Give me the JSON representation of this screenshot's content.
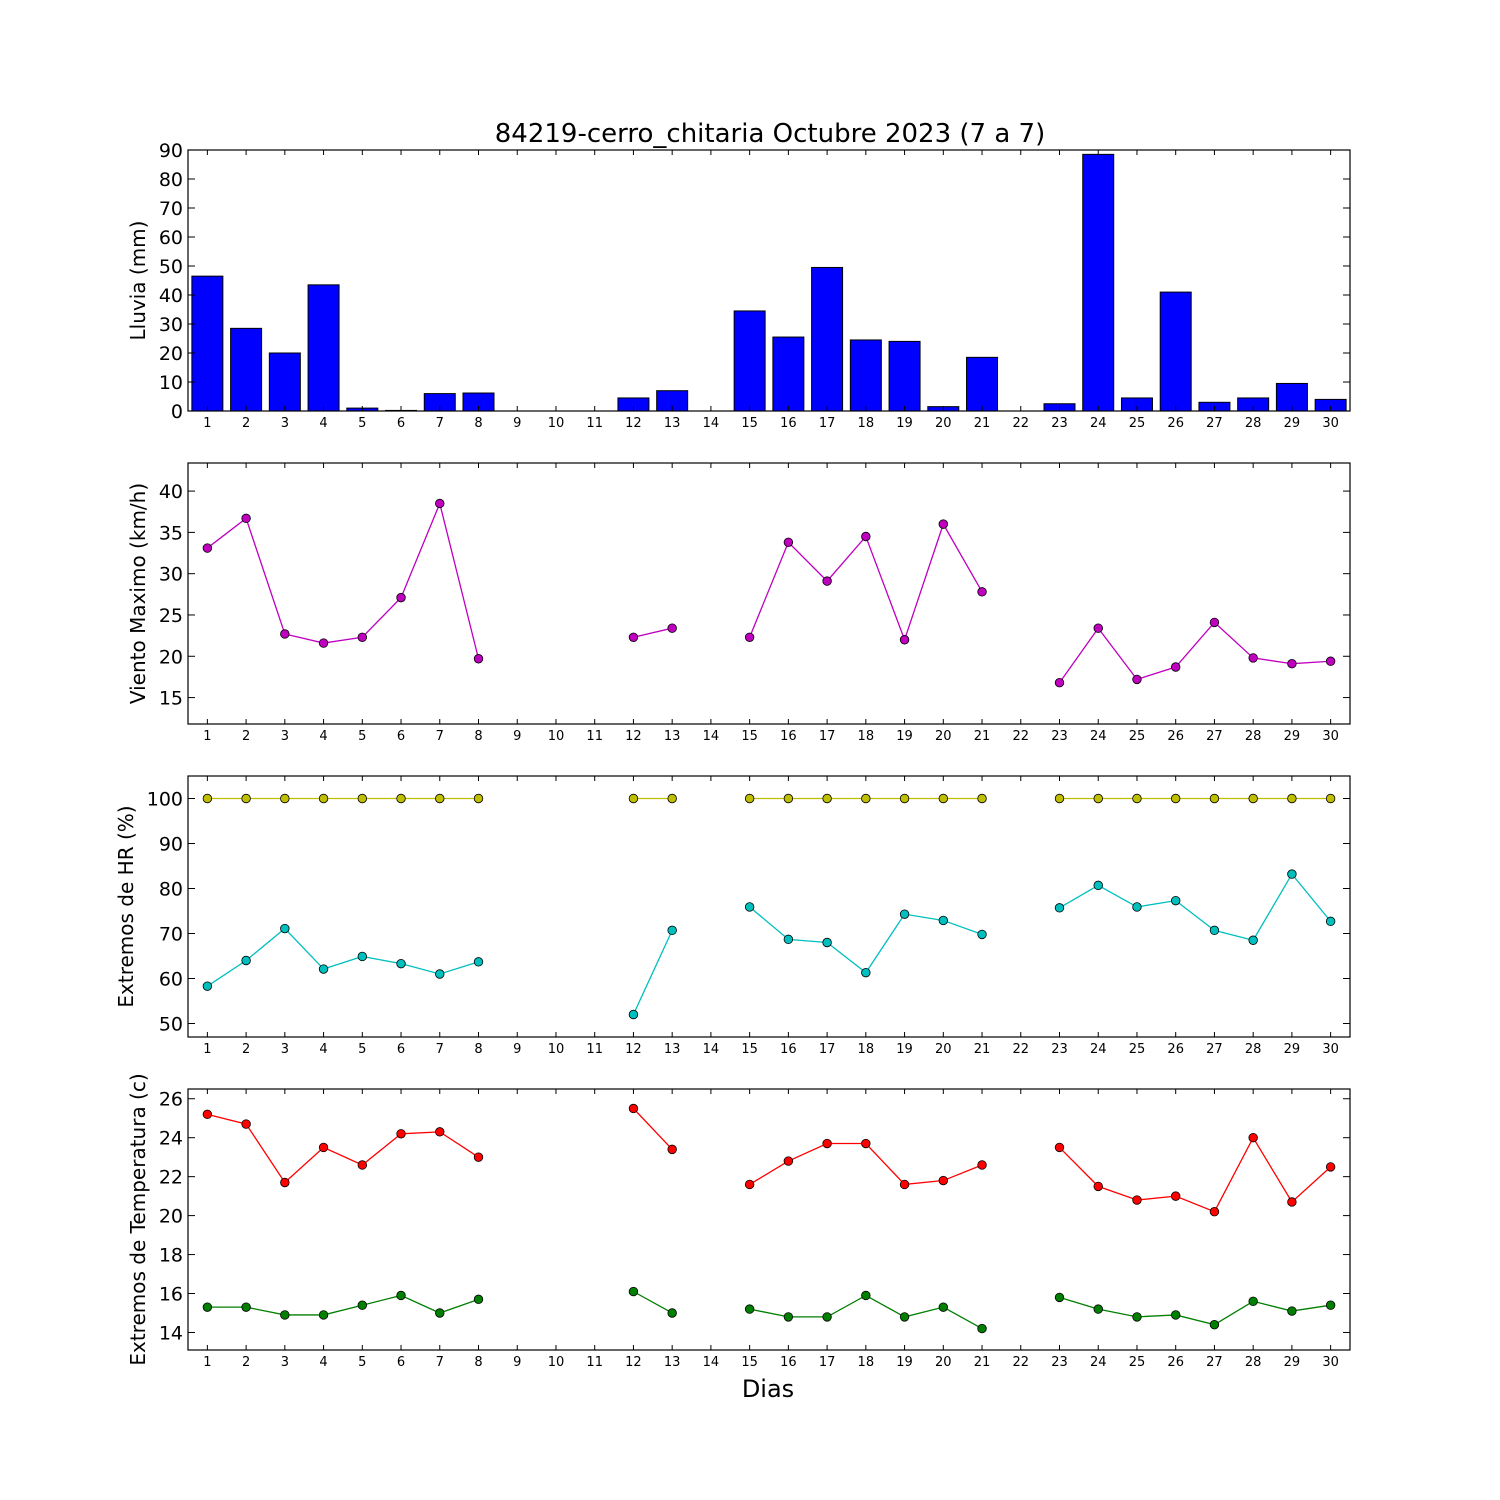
{
  "chart_data": {
    "title": "84219-cerro_chitaria Octubre 2023  (7 a 7)",
    "xlabel": "Dias",
    "days": [
      1,
      2,
      3,
      4,
      5,
      6,
      7,
      8,
      9,
      10,
      11,
      12,
      13,
      14,
      15,
      16,
      17,
      18,
      19,
      20,
      21,
      22,
      23,
      24,
      25,
      26,
      27,
      28,
      29,
      30
    ],
    "panels": [
      {
        "type": "bar",
        "ylabel": "Lluvia (mm)",
        "ylim": [
          0,
          90
        ],
        "yticks": [
          0,
          10,
          20,
          30,
          40,
          50,
          60,
          70,
          80,
          90
        ],
        "series": [
          {
            "color": "#0000ff",
            "values": [
              46.5,
              28.5,
              20.0,
              43.5,
              1.0,
              0.2,
              6.0,
              6.2,
              null,
              null,
              null,
              4.5,
              7.0,
              null,
              34.5,
              25.5,
              49.5,
              24.5,
              24.0,
              1.5,
              18.5,
              null,
              2.5,
              88.5,
              4.5,
              41.0,
              3.0,
              4.5,
              9.5,
              4.0
            ]
          }
        ]
      },
      {
        "type": "line",
        "ylabel": "Viento Maximo (km/h)",
        "ylim": [
          11.8,
          43.4
        ],
        "yticks": [
          15,
          20,
          25,
          30,
          35,
          40
        ],
        "series": [
          {
            "color": "#bf00bf",
            "values": [
              33.1,
              36.7,
              22.7,
              21.6,
              22.3,
              27.1,
              38.5,
              19.7,
              null,
              null,
              null,
              22.3,
              23.4,
              null,
              22.3,
              33.8,
              29.1,
              34.5,
              22.0,
              36.0,
              27.8,
              null,
              16.8,
              23.4,
              17.2,
              18.7,
              24.1,
              19.8,
              19.1,
              19.4
            ]
          }
        ]
      },
      {
        "type": "line",
        "ylabel": "Extremos de HR (%)",
        "ylim": [
          47,
          105
        ],
        "yticks": [
          50,
          60,
          70,
          80,
          90,
          100
        ],
        "series": [
          {
            "color": "#bfbf00",
            "values": [
              100,
              100,
              100,
              100,
              100,
              100,
              100,
              100,
              null,
              null,
              null,
              100,
              100,
              null,
              100,
              100,
              100,
              100,
              100,
              100,
              100,
              null,
              100,
              100,
              100,
              100,
              100,
              100,
              100,
              100
            ]
          },
          {
            "color": "#00bfbf",
            "values": [
              58.3,
              64.0,
              71.1,
              62.1,
              64.9,
              63.3,
              61.0,
              63.7,
              null,
              null,
              null,
              52.0,
              70.7,
              null,
              75.9,
              68.7,
              68.0,
              61.3,
              74.3,
              72.9,
              69.8,
              null,
              75.7,
              80.7,
              75.9,
              77.3,
              70.7,
              68.5,
              83.2,
              72.7
            ]
          }
        ]
      },
      {
        "type": "line",
        "ylabel": "Extremos de Temperatura (c)",
        "ylim": [
          13.1,
          26.5
        ],
        "yticks": [
          14,
          16,
          18,
          20,
          22,
          24,
          26
        ],
        "series": [
          {
            "color": "#ff0000",
            "values": [
              25.2,
              24.7,
              21.7,
              23.5,
              22.6,
              24.2,
              24.3,
              23.0,
              null,
              null,
              null,
              25.5,
              23.4,
              null,
              21.6,
              22.8,
              23.7,
              23.7,
              21.6,
              21.8,
              22.6,
              null,
              23.5,
              21.5,
              20.8,
              21.0,
              20.2,
              24.0,
              20.7,
              22.5
            ]
          },
          {
            "color": "#007f00",
            "values": [
              15.3,
              15.3,
              14.9,
              14.9,
              15.4,
              15.9,
              15.0,
              15.7,
              null,
              null,
              null,
              16.1,
              15.0,
              null,
              15.2,
              14.8,
              14.8,
              15.9,
              14.8,
              15.3,
              14.2,
              null,
              15.8,
              15.2,
              14.8,
              14.9,
              14.4,
              15.6,
              15.1,
              15.4
            ]
          }
        ]
      }
    ]
  }
}
